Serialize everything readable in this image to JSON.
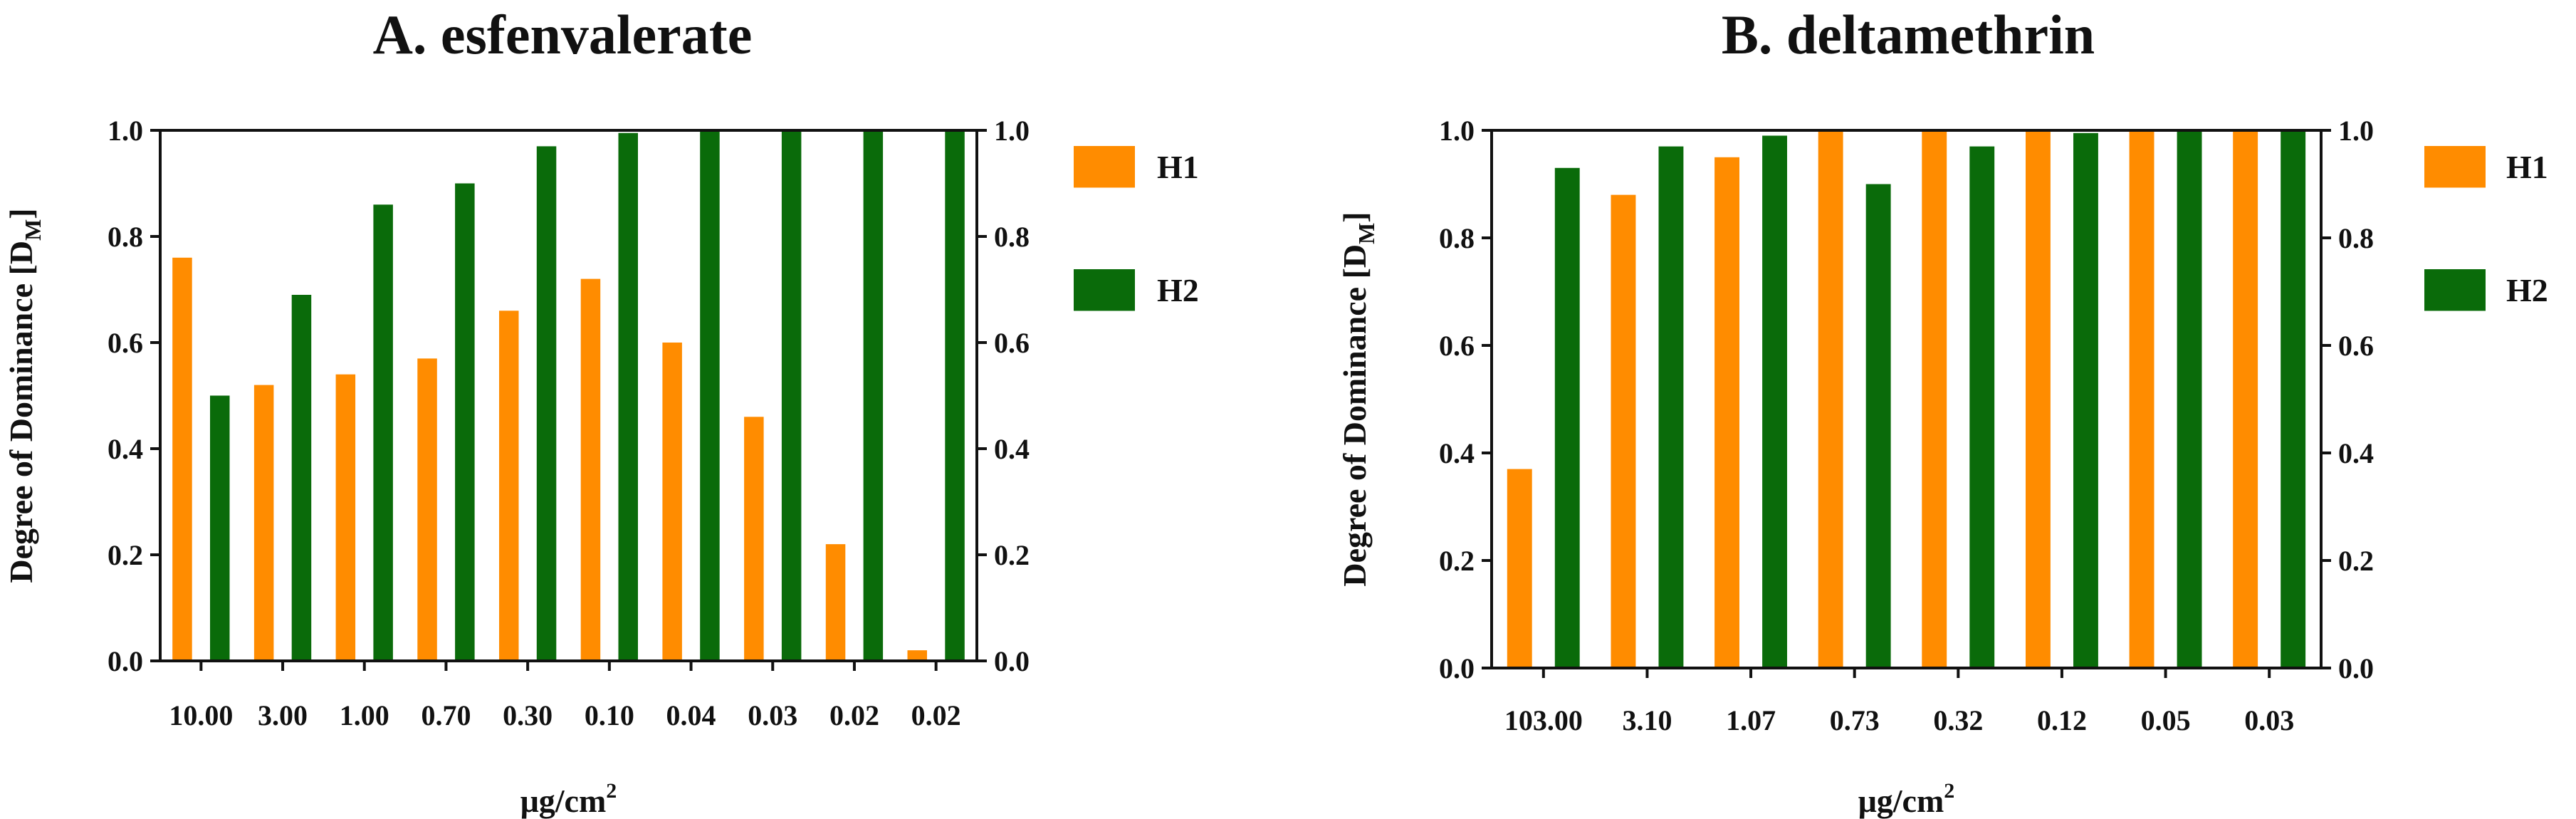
{
  "chart_data": [
    {
      "type": "bar",
      "title": "A. esfenvalerate",
      "xlabel": "μg/cm",
      "xlabel_sup": "2",
      "ylabel": "Degree of Dominance [D",
      "ylabel_sub": "M",
      "ylabel_close": "]",
      "ylim": [
        0,
        1
      ],
      "yticks": [
        "0.0",
        "0.2",
        "0.4",
        "0.6",
        "0.8",
        "1.0"
      ],
      "y2ticks": [
        "0.0",
        "0.2",
        "0.4",
        "0.6",
        "0.8",
        "1.0"
      ],
      "categories": [
        "10.00",
        "3.00",
        "1.00",
        "0.70",
        "0.30",
        "0.10",
        "0.04",
        "0.03",
        "0.02",
        "0.02"
      ],
      "series": [
        {
          "name": "H1",
          "color": "#FF8C00",
          "values": [
            0.76,
            0.52,
            0.54,
            0.57,
            0.66,
            0.72,
            0.6,
            0.46,
            0.22,
            0.02
          ]
        },
        {
          "name": "H2",
          "color": "#0A6B0A",
          "values": [
            0.5,
            0.69,
            0.86,
            0.9,
            0.97,
            0.995,
            1.0,
            1.0,
            1.0,
            1.0
          ]
        }
      ],
      "legend_position": "right"
    },
    {
      "type": "bar",
      "title": "B. deltamethrin",
      "xlabel": "μg/cm",
      "xlabel_sup": "2",
      "ylabel": "Degree of Dominance [D",
      "ylabel_sub": "M",
      "ylabel_close": "]",
      "ylim": [
        0,
        1
      ],
      "yticks": [
        "0.0",
        "0.2",
        "0.4",
        "0.6",
        "0.8",
        "1.0"
      ],
      "y2ticks": [
        "0.0",
        "0.2",
        "0.4",
        "0.6",
        "0.8",
        "1.0"
      ],
      "categories": [
        "103.00",
        "3.10",
        "1.07",
        "0.73",
        "0.32",
        "0.12",
        "0.05",
        "0.03"
      ],
      "series": [
        {
          "name": "H1",
          "color": "#FF8C00",
          "values": [
            0.37,
            0.88,
            0.95,
            1.0,
            1.0,
            1.0,
            1.0,
            1.0
          ]
        },
        {
          "name": "H2",
          "color": "#0A6B0A",
          "values": [
            0.93,
            0.97,
            0.99,
            0.9,
            0.97,
            0.995,
            1.0,
            1.0
          ]
        }
      ],
      "legend_position": "right"
    }
  ]
}
